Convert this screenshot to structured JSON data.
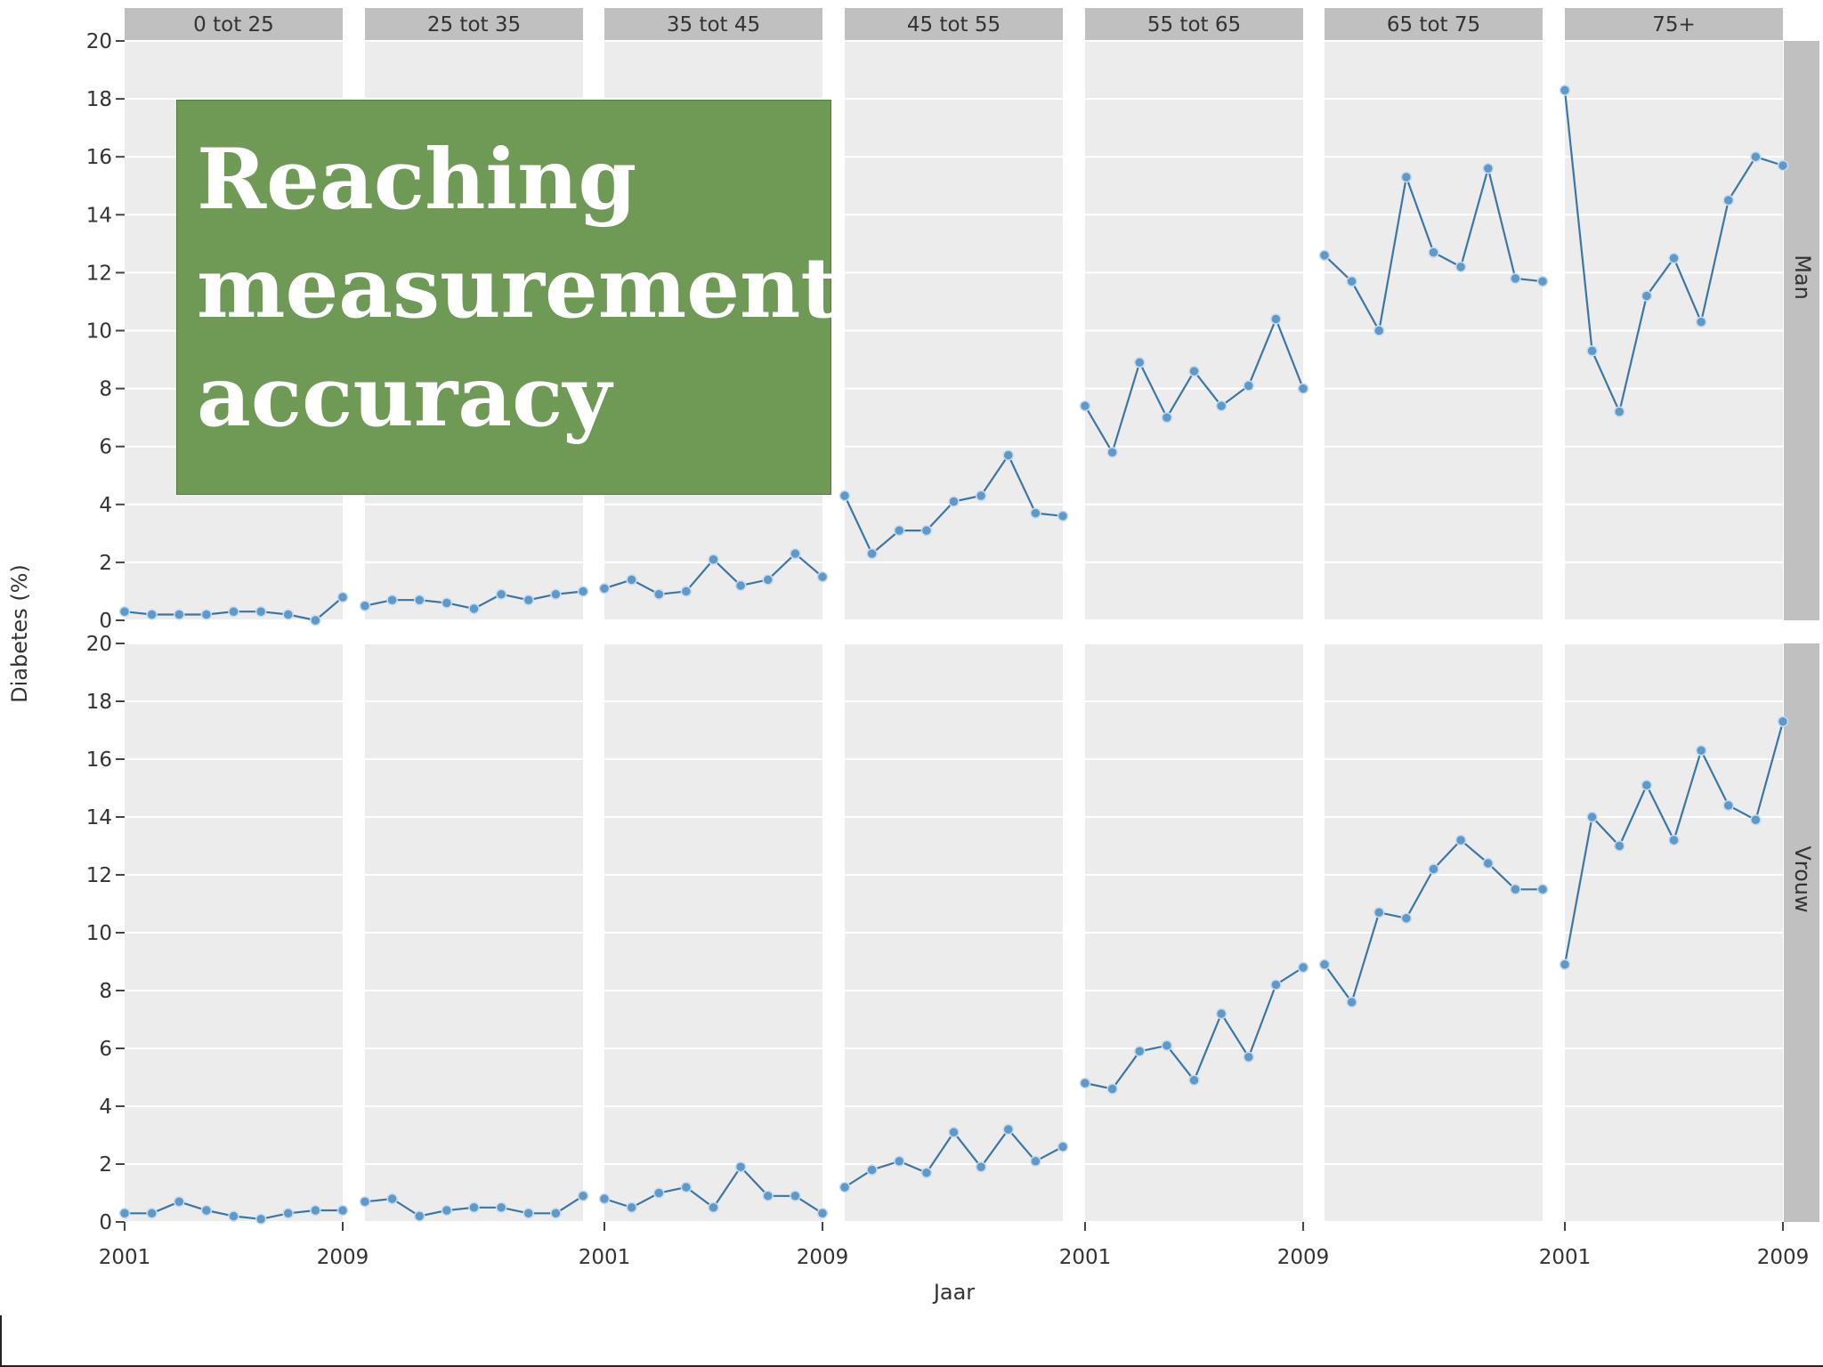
{
  "overlay": {
    "title": "Reaching measurement accuracy"
  },
  "chart_data": {
    "type": "line",
    "facet_columns": [
      "0 tot 25",
      "25 tot 35",
      "35 tot 45",
      "45 tot 55",
      "55 tot 65",
      "65 tot 75",
      "75+"
    ],
    "facet_rows": [
      "Man",
      "Vrouw"
    ],
    "x_ticks": [
      "2001",
      "2009"
    ],
    "y_ticks": [
      "0",
      "2",
      "4",
      "6",
      "8",
      "10",
      "12",
      "14",
      "16",
      "18",
      "20"
    ],
    "xlabel": "Jaar",
    "ylabel": "Diabetes (%)",
    "xlim": [
      2001,
      2009
    ],
    "ylim": [
      0,
      20
    ],
    "grid": true,
    "colors": {
      "line": "#3a76a6",
      "marker": "#5d9acb",
      "panel": "#ececec",
      "strip": "#c0c0c0"
    },
    "series": {
      "Man": [
        [
          0.3,
          0.2,
          0.2,
          0.2,
          0.3,
          0.3,
          0.2,
          0.0,
          0.8
        ],
        [
          0.5,
          0.7,
          0.7,
          0.6,
          0.4,
          0.9,
          0.7,
          0.9,
          1.0
        ],
        [
          1.1,
          1.4,
          0.9,
          1.0,
          2.1,
          1.2,
          1.4,
          2.3,
          1.5
        ],
        [
          4.3,
          2.3,
          3.1,
          3.1,
          4.1,
          4.3,
          5.7,
          3.7,
          3.6
        ],
        [
          7.4,
          5.8,
          8.9,
          7.0,
          8.6,
          7.4,
          8.1,
          10.4,
          8.0
        ],
        [
          12.6,
          11.7,
          10.0,
          15.3,
          12.7,
          12.2,
          15.6,
          11.8,
          11.7
        ],
        [
          18.3,
          9.3,
          7.2,
          11.2,
          12.5,
          10.3,
          14.5,
          16.0,
          15.7
        ]
      ],
      "Vrouw": [
        [
          0.3,
          0.3,
          0.7,
          0.4,
          0.2,
          0.1,
          0.3,
          0.4,
          0.4
        ],
        [
          0.7,
          0.8,
          0.2,
          0.4,
          0.5,
          0.5,
          0.3,
          0.3,
          0.9
        ],
        [
          0.8,
          0.5,
          1.0,
          1.2,
          0.5,
          1.9,
          0.9,
          0.9,
          0.3
        ],
        [
          1.2,
          1.8,
          2.1,
          1.7,
          3.1,
          1.9,
          3.2,
          2.1,
          2.6
        ],
        [
          4.8,
          4.6,
          5.9,
          6.1,
          4.9,
          7.2,
          5.7,
          8.2,
          8.8
        ],
        [
          8.9,
          7.6,
          10.7,
          10.5,
          12.2,
          13.2,
          12.4,
          11.5,
          11.5
        ],
        [
          8.9,
          14.0,
          13.0,
          15.1,
          13.2,
          16.3,
          14.4,
          13.9,
          17.3
        ]
      ]
    }
  }
}
